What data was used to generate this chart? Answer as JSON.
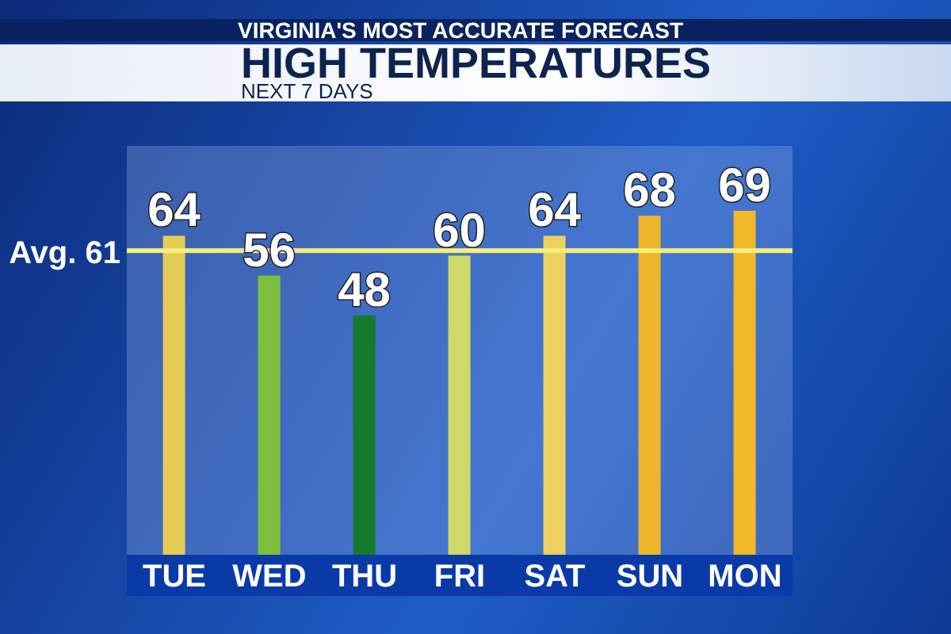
{
  "chart_data": {
    "type": "bar",
    "title": "HIGH TEMPERATURES",
    "subtitle": "NEXT 7 DAYS",
    "annotations": [
      "VIRGINIA'S MOST ACCURATE FORECAST"
    ],
    "categories": [
      "TUE",
      "WED",
      "THU",
      "FRI",
      "SAT",
      "SUN",
      "MON"
    ],
    "values": [
      64,
      56,
      48,
      60,
      64,
      68,
      69
    ],
    "colors": [
      "#e6cc55",
      "#7dbf3c",
      "#157a2c",
      "#cfd96a",
      "#edd060",
      "#eeb62a",
      "#efb927"
    ],
    "tick_labels": "x",
    "grid": false,
    "legend": false,
    "data_labels": true,
    "ref_lines": [
      {
        "axis": "y",
        "value": 61,
        "label": "Avg. 61",
        "color": "#f3f07a"
      }
    ]
  }
}
